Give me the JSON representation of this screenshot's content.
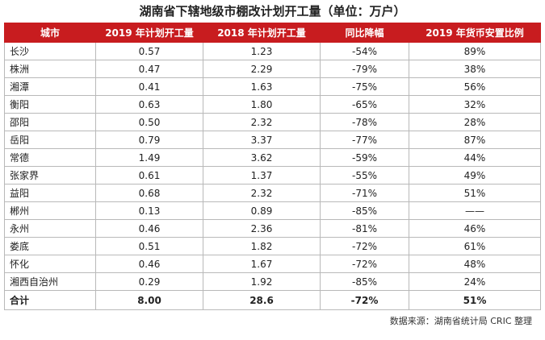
{
  "title": "湖南省下辖地级市棚改计划开工量（单位：万户）",
  "headers": [
    "城市",
    "2019 年计划开工量",
    "2018 年计划开工量",
    "同比降幅",
    "2019 年货币安置比例"
  ],
  "rows": [
    [
      "长沙",
      "0.57",
      "1.23",
      "-54%",
      "89%"
    ],
    [
      "株洲",
      "0.47",
      "2.29",
      "-79%",
      "38%"
    ],
    [
      "湘潭",
      "0.41",
      "1.63",
      "-75%",
      "56%"
    ],
    [
      "衡阳",
      "0.63",
      "1.80",
      "-65%",
      "32%"
    ],
    [
      "邵阳",
      "0.50",
      "2.32",
      "-78%",
      "28%"
    ],
    [
      "岳阳",
      "0.79",
      "3.37",
      "-77%",
      "87%"
    ],
    [
      "常德",
      "1.49",
      "3.62",
      "-59%",
      "44%"
    ],
    [
      "张家界",
      "0.61",
      "1.37",
      "-55%",
      "49%"
    ],
    [
      "益阳",
      "0.68",
      "2.32",
      "-71%",
      "51%"
    ],
    [
      "郴州",
      "0.13",
      "0.89",
      "-85%",
      "——"
    ],
    [
      "永州",
      "0.46",
      "2.36",
      "-81%",
      "46%"
    ],
    [
      "娄底",
      "0.51",
      "1.82",
      "-72%",
      "61%"
    ],
    [
      "怀化",
      "0.46",
      "1.67",
      "-72%",
      "48%"
    ],
    [
      "湘西自治州",
      "0.29",
      "1.92",
      "-85%",
      "24%"
    ]
  ],
  "total": [
    "合计",
    "8.00",
    "28.6",
    "-72%",
    "51%"
  ],
  "source": "数据来源：湖南省统计局  CRIC 整理"
}
